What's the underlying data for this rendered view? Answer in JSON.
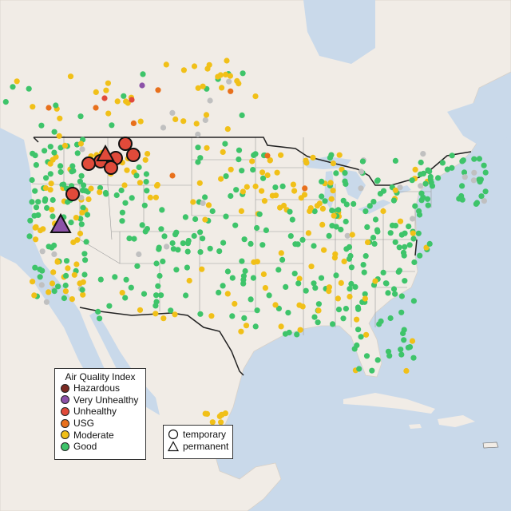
{
  "legend": {
    "title": "Air Quality Index",
    "categories": [
      {
        "label": "Hazardous",
        "color": "#7b2a22"
      },
      {
        "label": "Very Unhealthy",
        "color": "#8c52a8"
      },
      {
        "label": "Unhealthy",
        "color": "#e04a3a"
      },
      {
        "label": "USG",
        "color": "#e8701c"
      },
      {
        "label": "Moderate",
        "color": "#f1c018"
      },
      {
        "label": "Good",
        "color": "#3ec46a"
      }
    ],
    "no_data_color": "#c0c0c0"
  },
  "shape_legend": {
    "temporary": "temporary",
    "permanent": "permanent"
  },
  "colors": {
    "water": "#c9d9ea",
    "land": "#f1ece6",
    "boundary": "#222222",
    "state_line": "#9a9a9a"
  }
}
